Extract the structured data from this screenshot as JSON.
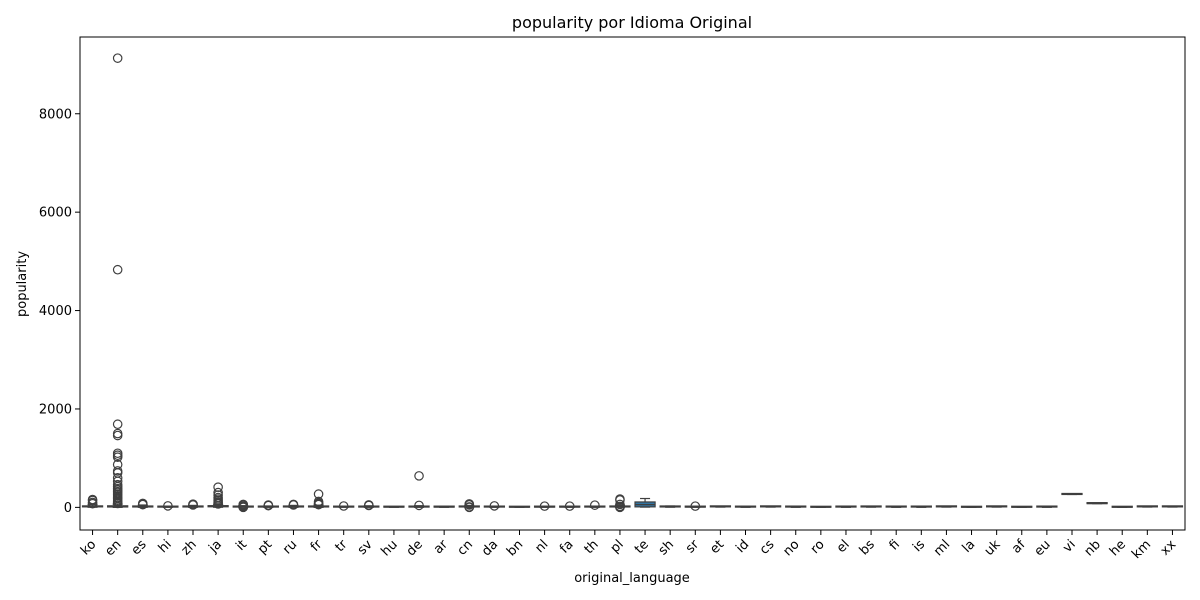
{
  "chart_data": {
    "type": "box",
    "title": "popularity por Idioma Original",
    "xlabel": "original_language",
    "ylabel": "popularity",
    "ylim": [
      -460,
      9560
    ],
    "yticks": [
      0,
      2000,
      4000,
      6000,
      8000
    ],
    "grid": false,
    "legend": "none",
    "box_color": "#3274a1",
    "categories": [
      "ko",
      "en",
      "es",
      "hi",
      "zh",
      "ja",
      "it",
      "pt",
      "ru",
      "fr",
      "tr",
      "sv",
      "hu",
      "de",
      "ar",
      "cn",
      "da",
      "bn",
      "nl",
      "fa",
      "th",
      "pl",
      "te",
      "sh",
      "sr",
      "et",
      "id",
      "cs",
      "no",
      "ro",
      "el",
      "bs",
      "fi",
      "is",
      "ml",
      "la",
      "uk",
      "af",
      "eu",
      "vi",
      "nb",
      "he",
      "km",
      "xx"
    ],
    "boxes": [
      {
        "cat": "ko",
        "q1": 10,
        "median": 20,
        "q3": 30,
        "whislo": 2,
        "whishi": 55,
        "fliers": [
          75,
          100,
          140,
          160
        ]
      },
      {
        "cat": "en",
        "q1": 8,
        "median": 16,
        "q3": 32,
        "whislo": 0,
        "whishi": 65,
        "fliers": [
          80,
          100,
          120,
          150,
          180,
          200,
          230,
          260,
          290,
          320,
          350,
          380,
          420,
          460,
          530,
          600,
          700,
          740,
          870,
          1020,
          1060,
          1100,
          1460,
          1500,
          1690,
          4830,
          9130
        ]
      },
      {
        "cat": "es",
        "q1": 8,
        "median": 15,
        "q3": 28,
        "whislo": 1,
        "whishi": 48,
        "fliers": [
          55,
          65,
          80
        ]
      },
      {
        "cat": "hi",
        "q1": 5,
        "median": 9,
        "q3": 15,
        "whislo": 1,
        "whishi": 25,
        "fliers": [
          30
        ]
      },
      {
        "cat": "zh",
        "q1": 8,
        "median": 14,
        "q3": 24,
        "whislo": 2,
        "whishi": 40,
        "fliers": [
          48,
          55,
          65
        ]
      },
      {
        "cat": "ja",
        "q1": 12,
        "median": 22,
        "q3": 35,
        "whislo": 2,
        "whishi": 60,
        "fliers": [
          70,
          90,
          110,
          140,
          170,
          200,
          250,
          300,
          410
        ]
      },
      {
        "cat": "it",
        "q1": 6,
        "median": 11,
        "q3": 20,
        "whislo": 1,
        "whishi": 35,
        "fliers": [
          0,
          10,
          20,
          40,
          50,
          60
        ]
      },
      {
        "cat": "pt",
        "q1": 6,
        "median": 10,
        "q3": 18,
        "whislo": 1,
        "whishi": 28,
        "fliers": [
          35,
          48
        ]
      },
      {
        "cat": "ru",
        "q1": 8,
        "median": 14,
        "q3": 24,
        "whislo": 1,
        "whishi": 40,
        "fliers": [
          48,
          60
        ]
      },
      {
        "cat": "fr",
        "q1": 8,
        "median": 14,
        "q3": 25,
        "whislo": 0,
        "whishi": 45,
        "fliers": [
          55,
          70,
          90,
          120,
          270
        ]
      },
      {
        "cat": "tr",
        "q1": 5,
        "median": 9,
        "q3": 15,
        "whislo": 1,
        "whishi": 22,
        "fliers": [
          28
        ]
      },
      {
        "cat": "sv",
        "q1": 6,
        "median": 11,
        "q3": 20,
        "whislo": 1,
        "whishi": 32,
        "fliers": [
          38,
          50
        ]
      },
      {
        "cat": "hu",
        "q1": 4,
        "median": 7,
        "q3": 11,
        "whislo": 1,
        "whishi": 16,
        "fliers": []
      },
      {
        "cat": "de",
        "q1": 6,
        "median": 11,
        "q3": 20,
        "whislo": 1,
        "whishi": 34,
        "fliers": [
          40,
          640
        ]
      },
      {
        "cat": "ar",
        "q1": 5,
        "median": 8,
        "q3": 13,
        "whislo": 1,
        "whishi": 20,
        "fliers": []
      },
      {
        "cat": "cn",
        "q1": 8,
        "median": 14,
        "q3": 24,
        "whislo": 0,
        "whishi": 40,
        "fliers": [
          0,
          10,
          50,
          60,
          70
        ]
      },
      {
        "cat": "da",
        "q1": 6,
        "median": 10,
        "q3": 16,
        "whislo": 1,
        "whishi": 24,
        "fliers": [
          30
        ]
      },
      {
        "cat": "bn",
        "q1": 3,
        "median": 5,
        "q3": 8,
        "whislo": 1,
        "whishi": 11,
        "fliers": []
      },
      {
        "cat": "nl",
        "q1": 5,
        "median": 8,
        "q3": 13,
        "whislo": 1,
        "whishi": 19,
        "fliers": [
          25
        ]
      },
      {
        "cat": "fa",
        "q1": 5,
        "median": 8,
        "q3": 13,
        "whislo": 1,
        "whishi": 19,
        "fliers": [
          25
        ]
      },
      {
        "cat": "th",
        "q1": 6,
        "median": 10,
        "q3": 16,
        "whislo": 1,
        "whishi": 24,
        "fliers": [
          45
        ]
      },
      {
        "cat": "pl",
        "q1": 8,
        "median": 14,
        "q3": 26,
        "whislo": 1,
        "whishi": 45,
        "fliers": [
          0,
          20,
          60,
          150,
          170
        ]
      },
      {
        "cat": "te",
        "q1": 10,
        "median": 55,
        "q3": 110,
        "whislo": 5,
        "whishi": 180,
        "fliers": []
      },
      {
        "cat": "sh",
        "q1": 8,
        "median": 12,
        "q3": 20,
        "whislo": 3,
        "whishi": 28,
        "fliers": []
      },
      {
        "cat": "sr",
        "q1": 5,
        "median": 8,
        "q3": 12,
        "whislo": 1,
        "whishi": 18,
        "fliers": [
          25
        ]
      },
      {
        "cat": "et",
        "q1": 10,
        "median": 14,
        "q3": 20,
        "whislo": 5,
        "whishi": 26,
        "fliers": []
      },
      {
        "cat": "id",
        "q1": 5,
        "median": 9,
        "q3": 14,
        "whislo": 1,
        "whishi": 20,
        "fliers": []
      },
      {
        "cat": "cs",
        "q1": 10,
        "median": 14,
        "q3": 20,
        "whislo": 5,
        "whishi": 26,
        "fliers": []
      },
      {
        "cat": "no",
        "q1": 6,
        "median": 10,
        "q3": 16,
        "whislo": 1,
        "whishi": 22,
        "fliers": []
      },
      {
        "cat": "ro",
        "q1": 2,
        "median": 4,
        "q3": 6,
        "whislo": 1,
        "whishi": 8,
        "fliers": []
      },
      {
        "cat": "el",
        "q1": 6,
        "median": 10,
        "q3": 16,
        "whislo": 1,
        "whishi": 22,
        "fliers": []
      },
      {
        "cat": "bs",
        "q1": 8,
        "median": 12,
        "q3": 18,
        "whislo": 4,
        "whishi": 24,
        "fliers": []
      },
      {
        "cat": "fi",
        "q1": 6,
        "median": 10,
        "q3": 16,
        "whislo": 1,
        "whishi": 22,
        "fliers": []
      },
      {
        "cat": "is",
        "q1": 6,
        "median": 10,
        "q3": 16,
        "whislo": 1,
        "whishi": 22,
        "fliers": []
      },
      {
        "cat": "ml",
        "q1": 10,
        "median": 14,
        "q3": 20,
        "whislo": 5,
        "whishi": 26,
        "fliers": []
      },
      {
        "cat": "la",
        "q1": 2,
        "median": 4,
        "q3": 6,
        "whislo": 1,
        "whishi": 8,
        "fliers": []
      },
      {
        "cat": "uk",
        "q1": 10,
        "median": 14,
        "q3": 20,
        "whislo": 5,
        "whishi": 26,
        "fliers": []
      },
      {
        "cat": "af",
        "q1": 2,
        "median": 4,
        "q3": 6,
        "whislo": 1,
        "whishi": 8,
        "fliers": []
      },
      {
        "cat": "eu",
        "q1": 6,
        "median": 10,
        "q3": 16,
        "whislo": 1,
        "whishi": 22,
        "fliers": []
      },
      {
        "cat": "vi",
        "q1": 262,
        "median": 265,
        "q3": 268,
        "whislo": 262,
        "whishi": 268,
        "fliers": []
      },
      {
        "cat": "nb",
        "q1": 76,
        "median": 78,
        "q3": 80,
        "whislo": 76,
        "whishi": 80,
        "fliers": []
      },
      {
        "cat": "he",
        "q1": 2,
        "median": 4,
        "q3": 6,
        "whislo": 1,
        "whishi": 8,
        "fliers": []
      },
      {
        "cat": "km",
        "q1": 10,
        "median": 14,
        "q3": 18,
        "whislo": 6,
        "whishi": 22,
        "fliers": []
      },
      {
        "cat": "xx",
        "q1": 10,
        "median": 14,
        "q3": 18,
        "whislo": 6,
        "whishi": 22,
        "fliers": []
      }
    ]
  }
}
